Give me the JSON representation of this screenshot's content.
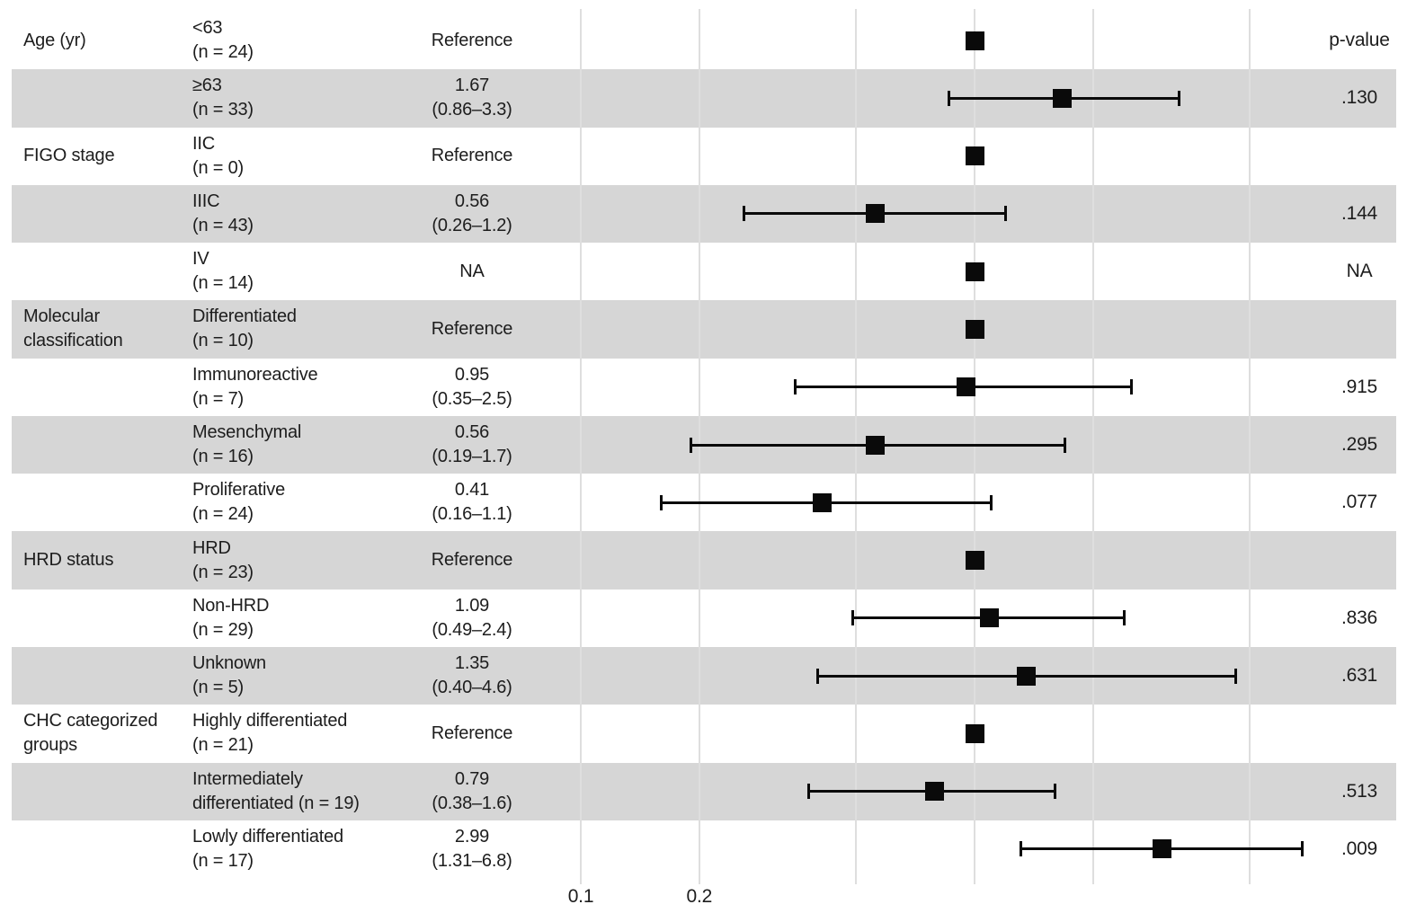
{
  "chart_data": {
    "type": "forest",
    "title": "",
    "x_scale": "log",
    "gridline_values": [
      0.1,
      0.2,
      0.5,
      1,
      2,
      5
    ],
    "x_tick_labels": [
      {
        "value": 0.1,
        "label": "0.1"
      },
      {
        "value": 0.2,
        "label": "0.2"
      }
    ],
    "p_value_header": "p-value",
    "columns": {
      "variable": "",
      "subgroup": "",
      "estimate": "",
      "p": "p-value"
    },
    "rows": [
      {
        "group_lines": [
          "Age (yr)"
        ],
        "subgroup_lines": [
          "<63",
          "(n = 24)"
        ],
        "estimate_lines": [
          "Reference"
        ],
        "p_value": "",
        "shaded": false,
        "square_at": 1.0,
        "ci": null
      },
      {
        "group_lines": [],
        "subgroup_lines": [
          "≥63",
          "(n = 33)"
        ],
        "estimate_lines": [
          "1.67",
          "(0.86–3.3)"
        ],
        "p_value": ".130",
        "shaded": true,
        "square_at": 1.67,
        "ci": [
          0.86,
          3.3
        ]
      },
      {
        "group_lines": [
          "FIGO stage"
        ],
        "subgroup_lines": [
          "IIC",
          "(n = 0)"
        ],
        "estimate_lines": [
          "Reference"
        ],
        "p_value": "",
        "shaded": false,
        "square_at": 1.0,
        "ci": null
      },
      {
        "group_lines": [],
        "subgroup_lines": [
          "IIIC",
          "(n = 43)"
        ],
        "estimate_lines": [
          "0.56",
          "(0.26–1.2)"
        ],
        "p_value": ".144",
        "shaded": true,
        "square_at": 0.56,
        "ci": [
          0.26,
          1.2
        ]
      },
      {
        "group_lines": [],
        "subgroup_lines": [
          "IV",
          "(n = 14)"
        ],
        "estimate_lines": [
          "NA"
        ],
        "p_value": "NA",
        "shaded": false,
        "square_at": 1.0,
        "ci": null
      },
      {
        "group_lines": [
          "Molecular",
          "classification"
        ],
        "subgroup_lines": [
          "Differentiated",
          "(n = 10)"
        ],
        "estimate_lines": [
          "Reference"
        ],
        "p_value": "",
        "shaded": true,
        "square_at": 1.0,
        "ci": null
      },
      {
        "group_lines": [],
        "subgroup_lines": [
          "Immunoreactive",
          "(n = 7)"
        ],
        "estimate_lines": [
          "0.95",
          "(0.35–2.5)"
        ],
        "p_value": ".915",
        "shaded": false,
        "square_at": 0.95,
        "ci": [
          0.35,
          2.5
        ]
      },
      {
        "group_lines": [],
        "subgroup_lines": [
          "Mesenchymal",
          "(n = 16)"
        ],
        "estimate_lines": [
          "0.56",
          "(0.19–1.7)"
        ],
        "p_value": ".295",
        "shaded": true,
        "square_at": 0.56,
        "ci": [
          0.19,
          1.7
        ]
      },
      {
        "group_lines": [],
        "subgroup_lines": [
          "Proliferative",
          "(n = 24)"
        ],
        "estimate_lines": [
          "0.41",
          "(0.16–1.1)"
        ],
        "p_value": ".077",
        "shaded": false,
        "square_at": 0.41,
        "ci": [
          0.16,
          1.1
        ]
      },
      {
        "group_lines": [
          "HRD status"
        ],
        "subgroup_lines": [
          "HRD",
          "(n = 23)"
        ],
        "estimate_lines": [
          "Reference"
        ],
        "p_value": "",
        "shaded": true,
        "square_at": 1.0,
        "ci": null
      },
      {
        "group_lines": [],
        "subgroup_lines": [
          "Non-HRD",
          "(n = 29)"
        ],
        "estimate_lines": [
          "1.09",
          "(0.49–2.4)"
        ],
        "p_value": ".836",
        "shaded": false,
        "square_at": 1.09,
        "ci": [
          0.49,
          2.4
        ]
      },
      {
        "group_lines": [],
        "subgroup_lines": [
          "Unknown",
          "(n = 5)"
        ],
        "estimate_lines": [
          "1.35",
          "(0.40–4.6)"
        ],
        "p_value": ".631",
        "shaded": true,
        "square_at": 1.35,
        "ci": [
          0.4,
          4.6
        ]
      },
      {
        "group_lines": [
          "CHC categorized",
          "groups"
        ],
        "subgroup_lines": [
          "Highly differentiated",
          "(n = 21)"
        ],
        "estimate_lines": [
          "Reference"
        ],
        "p_value": "",
        "shaded": false,
        "square_at": 1.0,
        "ci": null
      },
      {
        "group_lines": [],
        "subgroup_lines": [
          "Intermediately",
          "differentiated (n = 19)"
        ],
        "estimate_lines": [
          "0.79",
          "(0.38–1.6)"
        ],
        "p_value": ".513",
        "shaded": true,
        "square_at": 0.79,
        "ci": [
          0.38,
          1.6
        ]
      },
      {
        "group_lines": [],
        "subgroup_lines": [
          "Lowly differentiated",
          "(n = 17)"
        ],
        "estimate_lines": [
          "2.99",
          "(1.31–6.8)"
        ],
        "p_value": ".009",
        "shaded": false,
        "square_at": 2.99,
        "ci": [
          1.31,
          6.8
        ]
      }
    ]
  },
  "colors": {
    "band": "#d6d6d6",
    "gridline": "#dedede",
    "marker": "#0a0a0a",
    "text": "#1d1d1d"
  }
}
